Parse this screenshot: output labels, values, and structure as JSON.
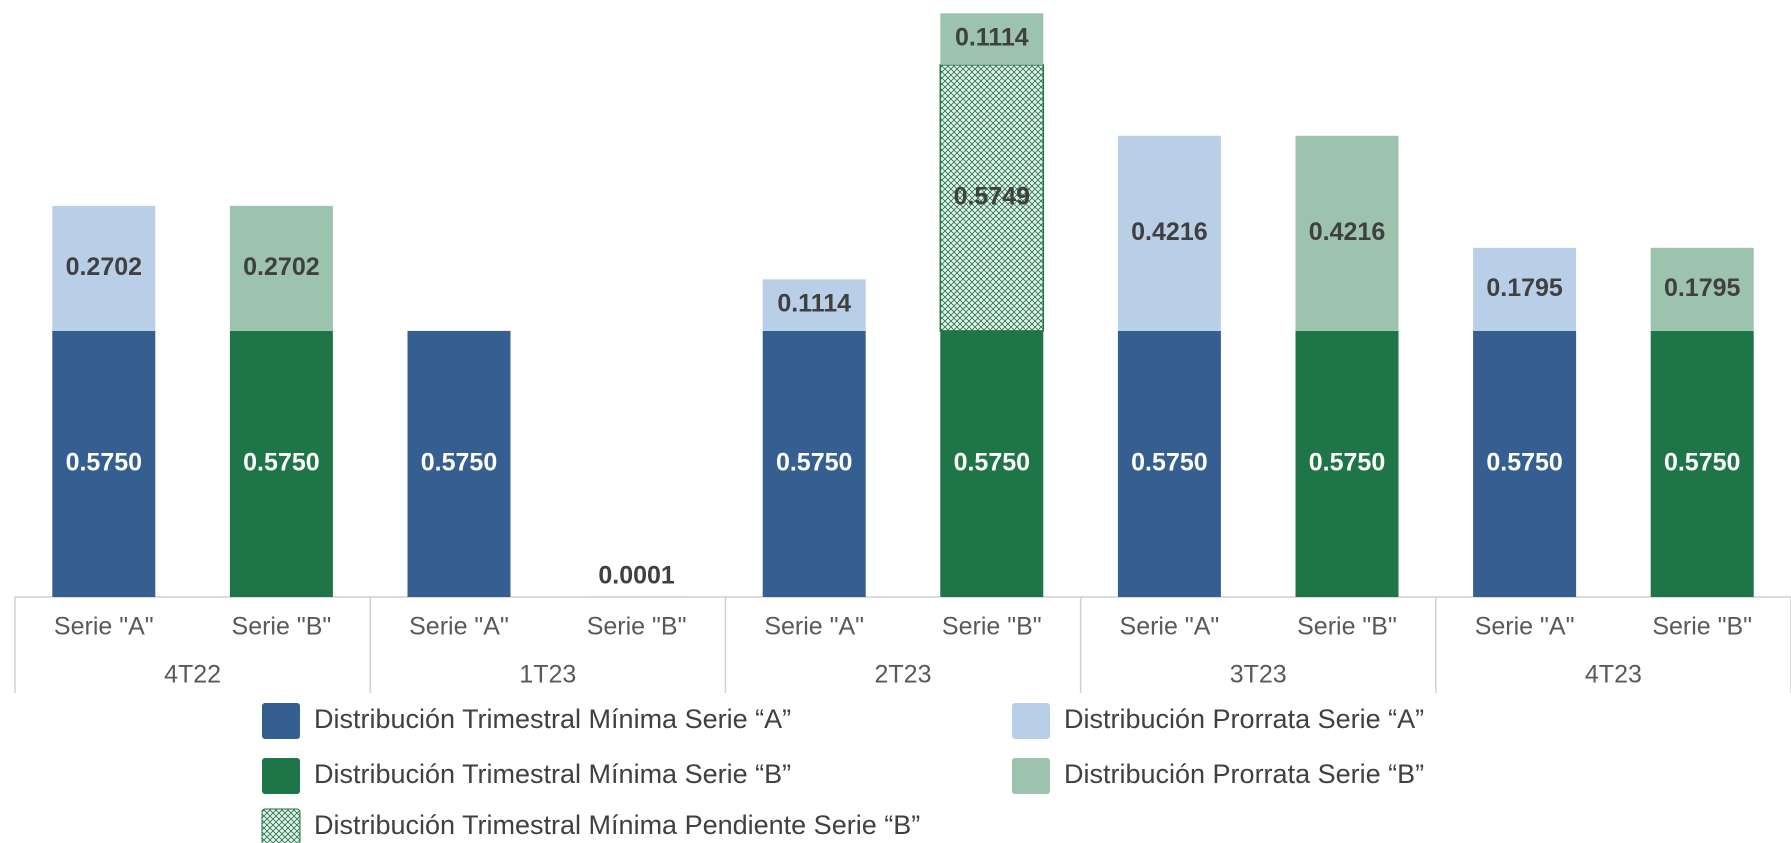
{
  "chart_data": {
    "type": "stacked-bar",
    "categories": [
      "Serie \"A\"",
      "Serie \"B\"",
      "Serie \"A\"",
      "Serie \"B\"",
      "Serie \"A\"",
      "Serie \"B\"",
      "Serie \"A\"",
      "Serie \"B\"",
      "Serie \"A\"",
      "Serie \"B\""
    ],
    "groups": [
      "4T22",
      "1T23",
      "2T23",
      "3T23",
      "4T23"
    ],
    "ylim": [
      0,
      1.29
    ],
    "series": [
      {
        "name": "Distribución Trimestral Mínima Serie “A”",
        "color": "#355f91",
        "values": [
          0.575,
          null,
          0.575,
          null,
          0.575,
          null,
          0.575,
          null,
          0.575,
          null
        ],
        "value_labels": [
          "0.5750",
          null,
          "0.5750",
          null,
          "0.5750",
          null,
          "0.5750",
          null,
          "0.5750",
          null
        ]
      },
      {
        "name": "Distribución Trimestral Mínima Serie “B”",
        "color": "#1e7548",
        "values": [
          null,
          0.575,
          null,
          0.0001,
          null,
          0.575,
          null,
          0.575,
          null,
          0.575
        ],
        "value_labels": [
          null,
          "0.5750",
          null,
          "0.0001",
          null,
          "0.5750",
          null,
          "0.5750",
          null,
          "0.5750"
        ]
      },
      {
        "name": "Distribución Trimestral Mínima Pendiente Serie “B”",
        "color": "#1e7548",
        "pattern": "hatch",
        "values": [
          null,
          null,
          null,
          null,
          null,
          0.5749,
          null,
          null,
          null,
          null
        ],
        "value_labels": [
          null,
          null,
          null,
          null,
          null,
          "0.5749",
          null,
          null,
          null,
          null
        ]
      },
      {
        "name": "Distribución Prorrata Serie “A”",
        "color": "#b9cfe7",
        "values": [
          0.2702,
          null,
          null,
          null,
          0.1114,
          null,
          0.4216,
          null,
          0.1795,
          null
        ],
        "value_labels": [
          "0.2702",
          null,
          null,
          null,
          "0.1114",
          null,
          "0.4216",
          null,
          "0.1795",
          null
        ]
      },
      {
        "name": "Distribución Prorrata Serie “B”",
        "color": "#9cc3ad",
        "values": [
          null,
          0.2702,
          null,
          null,
          null,
          0.1114,
          null,
          0.4216,
          null,
          0.1795
        ],
        "value_labels": [
          null,
          "0.2702",
          null,
          null,
          null,
          "0.1114",
          null,
          "0.4216",
          null,
          "0.1795"
        ]
      }
    ]
  }
}
